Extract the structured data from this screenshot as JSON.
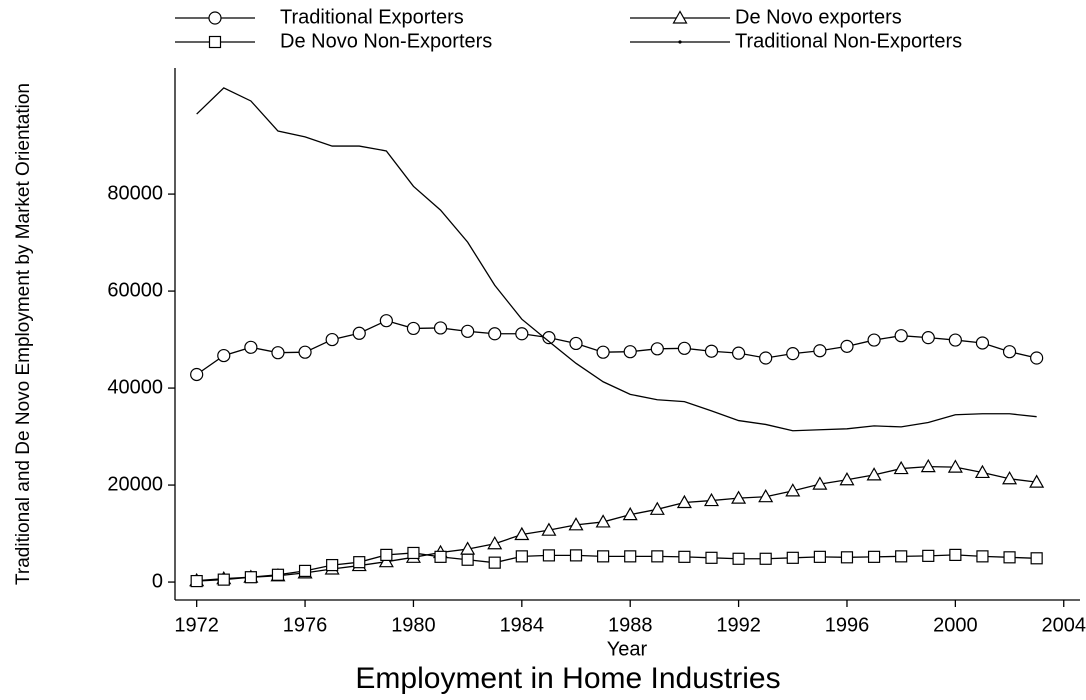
{
  "chart_data": {
    "type": "line",
    "title": "Employment in Home Industries",
    "x_label": "Year",
    "y_label": "Traditional and De Novo Employment by Market Orientation",
    "x": [
      1972,
      1973,
      1974,
      1975,
      1976,
      1977,
      1978,
      1979,
      1980,
      1981,
      1982,
      1983,
      1984,
      1985,
      1986,
      1987,
      1988,
      1989,
      1990,
      1991,
      1992,
      1993,
      1994,
      1995,
      1996,
      1997,
      1998,
      1999,
      2000,
      2001,
      2002,
      2003
    ],
    "series": [
      {
        "name": "Traditional Exporters",
        "color": "#000000",
        "marker": "circle",
        "values": [
          42800,
          46700,
          48400,
          47300,
          47400,
          50000,
          51300,
          53900,
          52300,
          52400,
          51700,
          51200,
          51200,
          50400,
          49200,
          47400,
          47500,
          48100,
          48200,
          47600,
          47200,
          46200,
          47100,
          47700,
          48600,
          49900,
          50800,
          50400,
          49900,
          49300,
          47500,
          46200
        ]
      },
      {
        "name": "De Novo exporters",
        "color": "#000000",
        "marker": "triangle",
        "values": [
          300,
          700,
          1000,
          1300,
          1900,
          2700,
          3400,
          4200,
          5100,
          6100,
          6800,
          7900,
          9800,
          10700,
          11800,
          12400,
          13900,
          15000,
          16400,
          16800,
          17300,
          17600,
          18800,
          20200,
          21100,
          22100,
          23400,
          23800,
          23700,
          22600,
          21300,
          20600
        ]
      },
      {
        "name": "De Novo Non-Exporters",
        "color": "#000000",
        "marker": "square",
        "values": [
          200,
          500,
          1000,
          1500,
          2300,
          3500,
          4100,
          5600,
          6000,
          5200,
          4600,
          4000,
          5300,
          5500,
          5500,
          5300,
          5300,
          5300,
          5200,
          5000,
          4800,
          4800,
          5000,
          5200,
          5100,
          5200,
          5300,
          5400,
          5600,
          5300,
          5100,
          4900
        ]
      },
      {
        "name": "Traditional Non-Exporters",
        "color": "#000000",
        "marker": "point",
        "values": [
          96500,
          101900,
          99200,
          93000,
          91800,
          89900,
          89900,
          88900,
          81600,
          76700,
          70100,
          61200,
          54200,
          49600,
          45100,
          41300,
          38700,
          37600,
          37200,
          35300,
          33300,
          32500,
          31200,
          31400,
          31600,
          32200,
          32000,
          32900,
          34500,
          34700,
          34700,
          34100
        ]
      }
    ],
    "xlim": [
      1971.2,
      2004.6
    ],
    "xticks": [
      1972,
      1976,
      1980,
      1984,
      1988,
      1992,
      1996,
      2000,
      2004
    ],
    "ylim": [
      -3700,
      106000
    ],
    "yticks": [
      0,
      20000,
      40000,
      60000,
      80000
    ],
    "grid": false,
    "legend": "top"
  }
}
